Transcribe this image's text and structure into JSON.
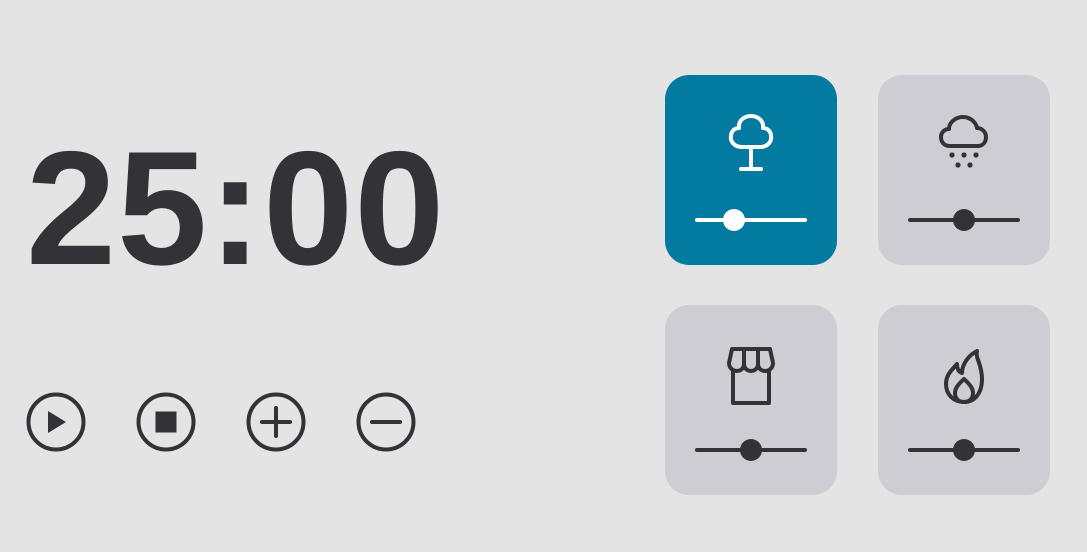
{
  "timer": {
    "display": "25:00"
  },
  "controls": [
    {
      "name": "play",
      "icon": "play-icon"
    },
    {
      "name": "stop",
      "icon": "stop-icon"
    },
    {
      "name": "add",
      "icon": "plus-icon"
    },
    {
      "name": "remove",
      "icon": "minus-icon"
    }
  ],
  "colors": {
    "background": "#e4e4e4",
    "text": "#323237",
    "card": "#cdcdd3",
    "active_card": "#037aa0",
    "active_foreground": "#ffffff"
  },
  "sounds": [
    {
      "name": "forest",
      "icon": "tree-icon",
      "active": true,
      "volume": 0.35
    },
    {
      "name": "rain",
      "icon": "rain-cloud-icon",
      "active": false,
      "volume": 0.5
    },
    {
      "name": "coffee-shop",
      "icon": "storefront-icon",
      "active": false,
      "volume": 0.5
    },
    {
      "name": "fireplace",
      "icon": "fire-icon",
      "active": false,
      "volume": 0.5
    }
  ]
}
